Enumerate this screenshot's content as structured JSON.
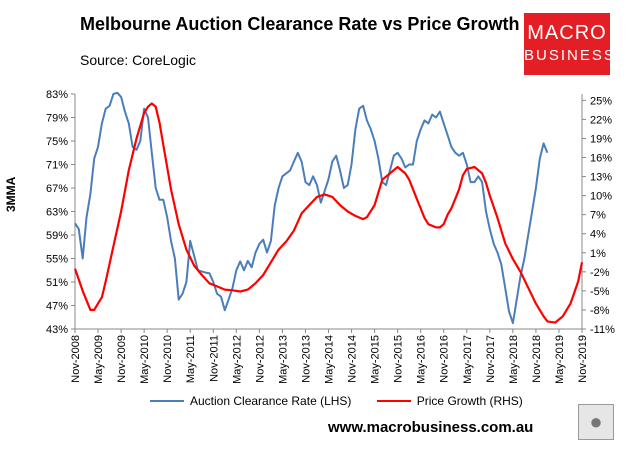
{
  "title": "Melbourne Auction Clearance Rate vs Price Growth",
  "source": "Source: CoreLogic",
  "logo": {
    "line1": "MACRO",
    "line2": "BUSINESS",
    "color": "#e31e24"
  },
  "url": "www.macrobusiness.com.au",
  "wolf_icon": "wolf-logo-icon",
  "chart_data": {
    "type": "line",
    "title": "Melbourne Auction Clearance Rate vs Price Growth",
    "ylabel_left": "3MMA",
    "ylabel_right": "",
    "y_left": {
      "min": 43,
      "max": 83,
      "ticks": [
        "83%",
        "79%",
        "75%",
        "71%",
        "67%",
        "63%",
        "59%",
        "55%",
        "51%",
        "47%",
        "43%"
      ]
    },
    "y_right": {
      "min": -11,
      "max": 26,
      "ticks": [
        "25%",
        "22%",
        "19%",
        "16%",
        "13%",
        "10%",
        "7%",
        "4%",
        "1%",
        "-2%",
        "-5%",
        "-8%",
        "-11%"
      ]
    },
    "x_ticks": [
      "Nov-2008",
      "May-2009",
      "Nov-2009",
      "May-2010",
      "Nov-2010",
      "May-2011",
      "Nov-2011",
      "May-2012",
      "Nov-2012",
      "May-2013",
      "Nov-2013",
      "May-2014",
      "Nov-2014",
      "May-2015",
      "Nov-2015",
      "May-2016",
      "Nov-2016",
      "May-2017",
      "Nov-2017",
      "May-2018",
      "Nov-2018",
      "May-2019",
      "Nov-2019"
    ],
    "x_range": [
      0,
      132
    ],
    "grid": false,
    "legend_position": "bottom",
    "series": [
      {
        "name": "Auction Clearance Rate (LHS)",
        "axis": "left",
        "color": "#4a7ebb",
        "points": [
          [
            0,
            61
          ],
          [
            1,
            60
          ],
          [
            2,
            55
          ],
          [
            3,
            62
          ],
          [
            4,
            66
          ],
          [
            5,
            72
          ],
          [
            6,
            74
          ],
          [
            7,
            78
          ],
          [
            8,
            80.5
          ],
          [
            9,
            81
          ],
          [
            10,
            83
          ],
          [
            11,
            83.2
          ],
          [
            12,
            82.5
          ],
          [
            13,
            80
          ],
          [
            14,
            78
          ],
          [
            15,
            74
          ],
          [
            16,
            73.5
          ],
          [
            17,
            75
          ],
          [
            18,
            80.5
          ],
          [
            19,
            79
          ],
          [
            20,
            73
          ],
          [
            21,
            67
          ],
          [
            22,
            65
          ],
          [
            23,
            65
          ],
          [
            24,
            62
          ],
          [
            25,
            58
          ],
          [
            26,
            55
          ],
          [
            27,
            48
          ],
          [
            28,
            49
          ],
          [
            29,
            51
          ],
          [
            30,
            58
          ],
          [
            31,
            55.5
          ],
          [
            32,
            53
          ],
          [
            33,
            52.8
          ],
          [
            34,
            52.6
          ],
          [
            35,
            52.5
          ],
          [
            36,
            51
          ],
          [
            37,
            49
          ],
          [
            38,
            48.5
          ],
          [
            39,
            46.2
          ],
          [
            40,
            48
          ],
          [
            41,
            50
          ],
          [
            42,
            53
          ],
          [
            43,
            54.5
          ],
          [
            44,
            53
          ],
          [
            45,
            54.6
          ],
          [
            46,
            53.5
          ],
          [
            47,
            56
          ],
          [
            48,
            57.5
          ],
          [
            49,
            58.2
          ],
          [
            50,
            56
          ],
          [
            51,
            58
          ],
          [
            52,
            64
          ],
          [
            53,
            67
          ],
          [
            54,
            69
          ],
          [
            55,
            69.5
          ],
          [
            56,
            70
          ],
          [
            57,
            71.5
          ],
          [
            58,
            73
          ],
          [
            59,
            71.5
          ],
          [
            60,
            68
          ],
          [
            61,
            67.5
          ],
          [
            62,
            69
          ],
          [
            63,
            67.5
          ],
          [
            64,
            64.5
          ],
          [
            65,
            66.5
          ],
          [
            66,
            68.5
          ],
          [
            67,
            71.5
          ],
          [
            68,
            72.5
          ],
          [
            69,
            70
          ],
          [
            70,
            67
          ],
          [
            71,
            67.5
          ],
          [
            72,
            71
          ],
          [
            73,
            77
          ],
          [
            74,
            80.5
          ],
          [
            75,
            81
          ],
          [
            76,
            78.5
          ],
          [
            77,
            77
          ],
          [
            78,
            75
          ],
          [
            79,
            72
          ],
          [
            80,
            68
          ],
          [
            81,
            67.5
          ],
          [
            82,
            70
          ],
          [
            83,
            72.5
          ],
          [
            84,
            73
          ],
          [
            85,
            72
          ],
          [
            86,
            70.5
          ],
          [
            87,
            71
          ],
          [
            88,
            71
          ],
          [
            89,
            75
          ],
          [
            90,
            77
          ],
          [
            91,
            78.5
          ],
          [
            92,
            78
          ],
          [
            93,
            79.5
          ],
          [
            94,
            79
          ],
          [
            95,
            80
          ],
          [
            96,
            78
          ],
          [
            97,
            76
          ],
          [
            98,
            74
          ],
          [
            99,
            73
          ],
          [
            100,
            72.5
          ],
          [
            101,
            73
          ],
          [
            102,
            71
          ],
          [
            103,
            68
          ],
          [
            104,
            68
          ],
          [
            105,
            69
          ],
          [
            106,
            68
          ],
          [
            107,
            63
          ],
          [
            108,
            60
          ],
          [
            109,
            57.5
          ],
          [
            110,
            56
          ],
          [
            111,
            54
          ],
          [
            112,
            50
          ],
          [
            113,
            46
          ],
          [
            114,
            44
          ],
          [
            115,
            48
          ],
          [
            116,
            52
          ],
          [
            117,
            55
          ],
          [
            118,
            59
          ],
          [
            119,
            63
          ],
          [
            120,
            67
          ],
          [
            121,
            72
          ],
          [
            122,
            74.6
          ],
          [
            123,
            73
          ]
        ]
      },
      {
        "name": "Price Growth (RHS)",
        "axis": "right",
        "color": "#ff0000",
        "points": [
          [
            0,
            -1.5
          ],
          [
            2,
            -5
          ],
          [
            4,
            -8
          ],
          [
            5,
            -8
          ],
          [
            6,
            -7
          ],
          [
            7,
            -6
          ],
          [
            8,
            -3.5
          ],
          [
            10,
            2
          ],
          [
            12,
            7.5
          ],
          [
            14,
            14
          ],
          [
            16,
            19
          ],
          [
            18,
            23
          ],
          [
            19,
            24
          ],
          [
            20,
            24.5
          ],
          [
            21,
            24
          ],
          [
            22,
            21.5
          ],
          [
            23,
            18
          ],
          [
            25,
            11
          ],
          [
            27,
            5.5
          ],
          [
            29,
            1.5
          ],
          [
            31,
            -1
          ],
          [
            33,
            -2.5
          ],
          [
            35,
            -3.8
          ],
          [
            37,
            -4.3
          ],
          [
            39,
            -4.8
          ],
          [
            41,
            -4.9
          ],
          [
            43,
            -5.1
          ],
          [
            45,
            -4.8
          ],
          [
            47,
            -3.8
          ],
          [
            49,
            -2.5
          ],
          [
            51,
            -0.5
          ],
          [
            53,
            1.5
          ],
          [
            55,
            2.8
          ],
          [
            57,
            4.5
          ],
          [
            59,
            7.2
          ],
          [
            61,
            8.5
          ],
          [
            63,
            9.8
          ],
          [
            65,
            10.2
          ],
          [
            67,
            9.8
          ],
          [
            69,
            8.5
          ],
          [
            71,
            7.5
          ],
          [
            73,
            6.8
          ],
          [
            75,
            6.3
          ],
          [
            76,
            6.6
          ],
          [
            78,
            8.5
          ],
          [
            80,
            12.5
          ],
          [
            82,
            13.5
          ],
          [
            84,
            14.5
          ],
          [
            86,
            13.5
          ],
          [
            87,
            12.5
          ],
          [
            89,
            9.5
          ],
          [
            91,
            6.5
          ],
          [
            92,
            5.5
          ],
          [
            94,
            5
          ],
          [
            95,
            5
          ],
          [
            96,
            5.5
          ],
          [
            97,
            7
          ],
          [
            98,
            8
          ],
          [
            99,
            9.5
          ],
          [
            100,
            11
          ],
          [
            101,
            13.2
          ],
          [
            102,
            14.2
          ],
          [
            104,
            14.5
          ],
          [
            106,
            13.5
          ],
          [
            107,
            12
          ],
          [
            108,
            10
          ],
          [
            110,
            6.5
          ],
          [
            112,
            2.5
          ],
          [
            114,
            0
          ],
          [
            116,
            -2
          ],
          [
            118,
            -4.5
          ],
          [
            120,
            -7
          ],
          [
            122,
            -9
          ],
          [
            123,
            -9.8
          ],
          [
            125,
            -10
          ],
          [
            127,
            -9
          ],
          [
            129,
            -7
          ],
          [
            131,
            -3.5
          ],
          [
            132,
            -0.5
          ]
        ]
      }
    ]
  },
  "legend": [
    {
      "label": "Auction Clearance Rate (LHS)",
      "color": "#4a7ebb"
    },
    {
      "label": "Price Growth (RHS)",
      "color": "#ff0000"
    }
  ]
}
